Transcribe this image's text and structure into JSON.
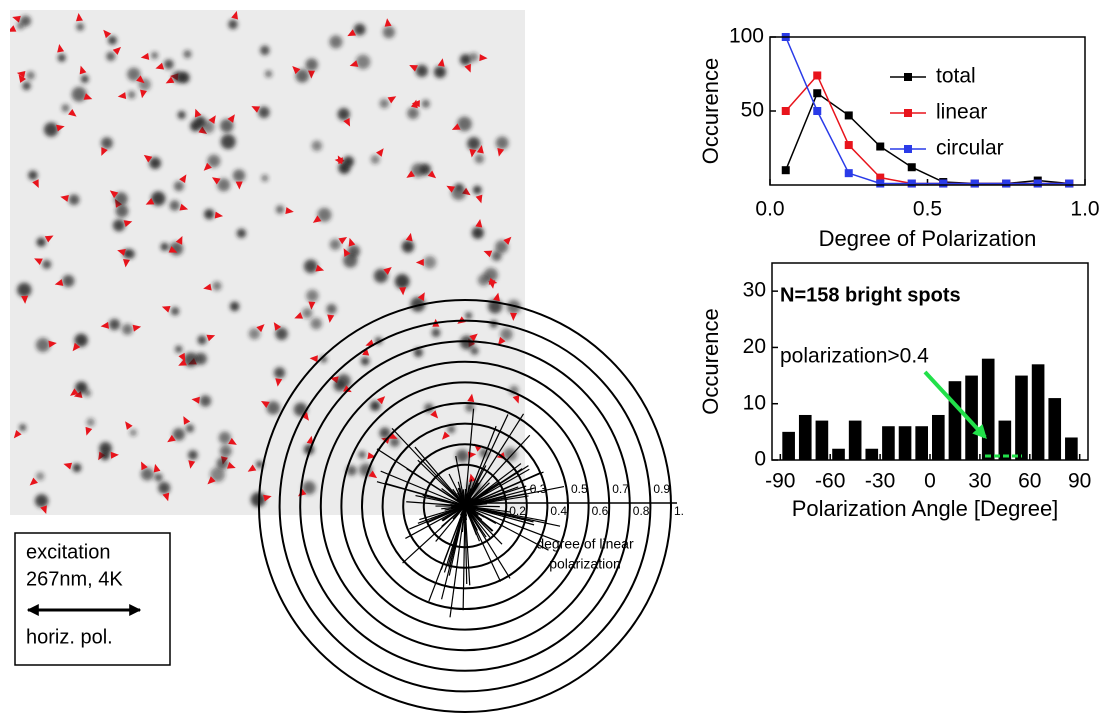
{
  "image_legend": {
    "lines": [
      "excitation",
      "267nm, 4K",
      "horiz. pol."
    ]
  },
  "chart_data": [
    {
      "type": "polar",
      "rlim": [
        0,
        1
      ],
      "rticks": [
        0.2,
        0.3,
        0.4,
        0.5,
        0.6,
        0.7,
        0.8,
        0.9,
        {
          "value": 1,
          "label": "1."
        }
      ],
      "r_label": [
        "degree of linear",
        "polarization"
      ]
    },
    {
      "type": "line",
      "xlabel": "Degree of Polarization",
      "ylabel": "Occurence",
      "x": [
        0.05,
        0.15,
        0.25,
        0.35,
        0.45,
        0.55,
        0.65,
        0.75,
        0.85,
        0.95
      ],
      "series": [
        {
          "name": "total",
          "color": "#000000",
          "values": [
            10,
            62,
            47,
            26,
            12,
            2,
            1,
            1,
            3,
            1
          ]
        },
        {
          "name": "linear",
          "color": "#e8141c",
          "values": [
            50,
            74,
            27,
            5,
            1,
            1,
            1,
            1,
            1,
            1
          ]
        },
        {
          "name": "circular",
          "color": "#2a3be8",
          "values": [
            100,
            50,
            8,
            1,
            1,
            1,
            1,
            1,
            1,
            1
          ]
        }
      ],
      "xlim": [
        0,
        1
      ],
      "xticks": [
        {
          "value": 0,
          "label": "0.0"
        },
        0.5,
        {
          "value": 1,
          "label": "1.0"
        }
      ],
      "ylim": [
        0,
        100
      ],
      "yticks": [
        50,
        100
      ],
      "legend": "upper right"
    },
    {
      "type": "histogram",
      "title": "N=158 bright spots",
      "annotation": "polarization>0.4",
      "xlabel": "Polarization Angle [Degree]",
      "ylabel": "Occurence",
      "bins": [
        -90,
        -80,
        -70,
        -60,
        -50,
        -40,
        -30,
        -20,
        -10,
        0,
        10,
        20,
        30,
        40,
        50,
        60,
        70,
        80,
        90
      ],
      "values": [
        5,
        8,
        7,
        2,
        7,
        2,
        6,
        6,
        6,
        8,
        14,
        15,
        18,
        7,
        15,
        17,
        11,
        4
      ],
      "color": "#000000",
      "xlim": [
        -95,
        95
      ],
      "xticks": [
        -90,
        -60,
        -30,
        0,
        30,
        60,
        90
      ],
      "ylim": [
        0,
        35
      ],
      "yticks": [
        0,
        10,
        20,
        30
      ]
    }
  ]
}
